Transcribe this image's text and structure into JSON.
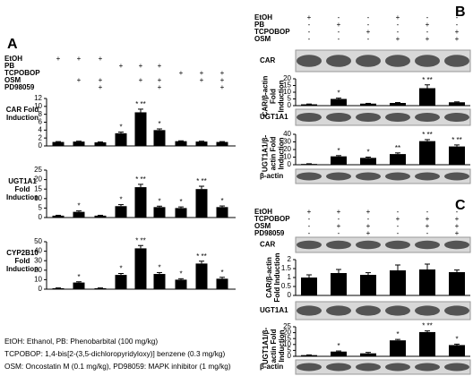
{
  "panels": [
    {
      "label": "A",
      "treatments": [
        {
          "name": "EtOH",
          "signs": [
            "+",
            "+",
            "+",
            null,
            null,
            null,
            null,
            null,
            null
          ]
        },
        {
          "name": "PB",
          "signs": [
            null,
            null,
            null,
            "+",
            "+",
            "+",
            null,
            null,
            null
          ]
        },
        {
          "name": "TCPOBOP",
          "signs": [
            null,
            null,
            null,
            null,
            null,
            null,
            "+",
            "+",
            "+"
          ]
        },
        {
          "name": "OSM",
          "signs": [
            null,
            "+",
            "+",
            null,
            "+",
            "+",
            null,
            "+",
            "+"
          ]
        },
        {
          "name": "PD98059",
          "signs": [
            null,
            null,
            "+",
            null,
            null,
            "+",
            null,
            null,
            "+"
          ]
        }
      ]
    },
    {
      "label": "B",
      "treatments": [
        {
          "name": "EtOH",
          "signs": [
            "+",
            "-",
            "-",
            "+",
            "-",
            "-"
          ]
        },
        {
          "name": "PB",
          "signs": [
            "-",
            "+",
            "-",
            "-",
            "+",
            "-"
          ]
        },
        {
          "name": "TCPOBOP",
          "signs": [
            "-",
            "-",
            "+",
            "-",
            "-",
            "+"
          ]
        },
        {
          "name": "OSM",
          "signs": [
            "-",
            "-",
            "-",
            "+",
            "+",
            "+"
          ]
        }
      ],
      "blots": [
        "CAR",
        "UGT1A1",
        "β-actin"
      ]
    },
    {
      "label": "C",
      "treatments": [
        {
          "name": "EtOH",
          "signs": [
            "+",
            "+",
            "+",
            "-",
            "-",
            "-"
          ]
        },
        {
          "name": "TCPOBOP",
          "signs": [
            "-",
            "-",
            "-",
            "+",
            "+",
            "+"
          ]
        },
        {
          "name": "OSM",
          "signs": [
            "-",
            "+",
            "+",
            "-",
            "+",
            "+"
          ]
        },
        {
          "name": "PD98059",
          "signs": [
            "-",
            "-",
            "+",
            "-",
            "-",
            "+"
          ]
        }
      ],
      "blots": [
        "CAR",
        "UGT1A1",
        "β-actin"
      ]
    }
  ],
  "chart_data": [
    {
      "type": "bar",
      "ylabel": "CAR Fold Induction",
      "ylim": [
        0,
        12
      ],
      "yticks": [
        0,
        2,
        4,
        6,
        8,
        10,
        12
      ],
      "values": [
        1.0,
        1.1,
        0.9,
        3.2,
        8.5,
        4.0,
        1.2,
        1.1,
        1.0
      ],
      "errors": [
        0.1,
        0.1,
        0.1,
        0.3,
        0.8,
        0.3,
        0.1,
        0.1,
        0.1
      ],
      "significance": [
        null,
        null,
        null,
        "*",
        "* **",
        "*",
        null,
        null,
        null
      ],
      "color": "#000000"
    },
    {
      "type": "bar",
      "ylabel": "UGT1A1 Fold Induction",
      "ylim": [
        0,
        25
      ],
      "yticks": [
        0,
        5,
        10,
        15,
        20,
        25
      ],
      "values": [
        1,
        3,
        1,
        6,
        16,
        5.5,
        5,
        15,
        5.5
      ],
      "errors": [
        0.2,
        0.5,
        0.2,
        0.8,
        1.5,
        0.5,
        0.6,
        1.5,
        0.6
      ],
      "significance": [
        null,
        "*",
        null,
        "*",
        "* **",
        "*",
        "*",
        "* **",
        "*"
      ],
      "color": "#000000"
    },
    {
      "type": "bar",
      "ylabel": "CYP2B10 Fold Induction",
      "ylim": [
        0,
        50
      ],
      "yticks": [
        0,
        10,
        20,
        30,
        40,
        50
      ],
      "values": [
        1,
        7,
        1,
        15,
        43,
        16,
        10,
        27,
        11
      ],
      "errors": [
        0.3,
        0.8,
        0.3,
        1.5,
        3,
        1.5,
        1,
        2.5,
        1.5
      ],
      "significance": [
        null,
        "*",
        null,
        "*",
        "* **",
        "*",
        "*",
        "* **",
        "*"
      ],
      "color": "#000000"
    },
    {
      "type": "bar",
      "ylabel": "CAR/β-actin Fold Induction",
      "ylim": [
        0,
        20
      ],
      "yticks": [
        0,
        5,
        10,
        15,
        20
      ],
      "values": [
        1,
        5,
        1.5,
        2,
        13,
        2.5
      ],
      "errors": [
        0.2,
        0.6,
        0.2,
        0.3,
        2.5,
        0.3
      ],
      "significance": [
        null,
        "*",
        null,
        null,
        "* **",
        null
      ],
      "color": "#000000"
    },
    {
      "type": "bar",
      "ylabel": "UGT1A1/β-actin Fold Induction",
      "ylim": [
        0,
        40
      ],
      "yticks": [
        0,
        10,
        20,
        30,
        40
      ],
      "values": [
        1,
        11,
        9,
        14,
        31,
        24
      ],
      "errors": [
        0.3,
        1,
        1,
        1.5,
        2,
        2
      ],
      "significance": [
        null,
        "*",
        "*",
        "**",
        "* **",
        "* **"
      ],
      "color": "#000000"
    },
    {
      "type": "bar",
      "ylabel": "CAR/β-actin Fold Induction",
      "ylim": [
        0,
        2
      ],
      "yticks": [
        0,
        0.5,
        1,
        1.5,
        2
      ],
      "values": [
        1.0,
        1.25,
        1.15,
        1.4,
        1.45,
        1.3
      ],
      "errors": [
        0.15,
        0.2,
        0.12,
        0.3,
        0.3,
        0.12
      ],
      "significance": [
        null,
        null,
        null,
        null,
        null,
        null
      ],
      "color": "#000000"
    },
    {
      "type": "bar",
      "ylabel": "UGT1A1/β-actin Fold Induction",
      "ylim": [
        0,
        25
      ],
      "yticks": [
        0,
        5,
        10,
        15,
        20,
        25
      ],
      "values": [
        1,
        4,
        2.5,
        13.5,
        20.5,
        9.5
      ],
      "errors": [
        0.2,
        0.5,
        0.8,
        0.8,
        1,
        0.8
      ],
      "significance": [
        null,
        "*",
        null,
        "*",
        "* **",
        "*"
      ],
      "color": "#000000"
    }
  ],
  "footnote": [
    "EtOH: Ethanol, PB: Phenobarbital (100 mg/kg)",
    "TCPOBOP: 1,4-bis[2-(3,5-dichloropyridyloxy)] benzene (0.3 mg/kg)",
    "OSM: Oncostatin M (0.1 mg/kg), PD98059: MAPK inhibitor (1 mg/kg)"
  ]
}
